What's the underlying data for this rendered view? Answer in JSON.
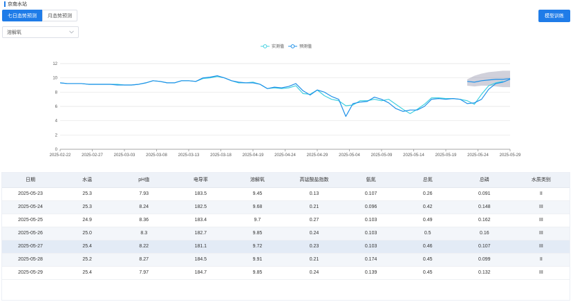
{
  "station": {
    "name": "京南水站"
  },
  "tabs": [
    {
      "label": "七日态势预测",
      "active": true
    },
    {
      "label": "月态势预测",
      "active": false
    }
  ],
  "train_button": {
    "label": "模型训练"
  },
  "select": {
    "value": "溶解氧"
  },
  "colors": {
    "primary": "#1f7ce8",
    "measured": "#40d0e0",
    "forecast": "#1e90e8",
    "band": "#9a9ab0"
  },
  "chart_data": {
    "type": "line",
    "legend": [
      {
        "name": "实测值",
        "color": "#40d0e0"
      },
      {
        "name": "预测值",
        "color": "#1e90e8"
      }
    ],
    "legend_position": "top-center",
    "ylim": [
      0,
      12
    ],
    "yticks": [
      0,
      2,
      4,
      6,
      8,
      10,
      12
    ],
    "grid": true,
    "xticks": [
      "2025-02-22",
      "2025-02-27",
      "2025-03-03",
      "2025-03-08",
      "2025-03-13",
      "2025-03-18",
      "2025-04-19",
      "2025-04-24",
      "2025-04-29",
      "2025-05-04",
      "2025-05-09",
      "2025-05-14",
      "2025-05-19",
      "2025-05-24",
      "2025-05-29"
    ],
    "x_count": 64,
    "series": [
      {
        "name": "实测值",
        "values": [
          9.3,
          9.2,
          9.2,
          9.2,
          9.1,
          9.1,
          9.1,
          9.1,
          9.1,
          9.0,
          9.0,
          9.1,
          9.3,
          9.6,
          9.5,
          9.3,
          9.3,
          9.6,
          9.6,
          9.5,
          9.9,
          10.0,
          10.2,
          10.0,
          9.6,
          9.3,
          9.3,
          9.4,
          9.1,
          8.5,
          8.6,
          8.5,
          8.6,
          8.9,
          7.8,
          7.7,
          8.3,
          7.5,
          7.0,
          6.8,
          6.1,
          6.2,
          6.8,
          6.8,
          7.0,
          6.8,
          7.0,
          6.3,
          5.6,
          5.0,
          5.6,
          6.3,
          7.2,
          7.2,
          7.1,
          7.1,
          7.0,
          6.8,
          6.3,
          7.7,
          8.9,
          9.3,
          9.5,
          null
        ]
      },
      {
        "name": "预测值",
        "values": [
          9.3,
          9.2,
          9.2,
          9.2,
          9.1,
          9.1,
          9.1,
          9.1,
          9.0,
          9.0,
          9.0,
          9.1,
          9.3,
          9.6,
          9.5,
          9.3,
          9.3,
          9.6,
          9.6,
          9.5,
          10.0,
          10.1,
          10.3,
          10.0,
          9.6,
          9.4,
          9.3,
          9.3,
          9.1,
          8.5,
          8.7,
          8.6,
          8.8,
          9.2,
          8.2,
          7.6,
          8.3,
          8.0,
          7.4,
          7.0,
          4.6,
          6.4,
          6.6,
          6.7,
          7.3,
          7.0,
          6.5,
          5.7,
          5.3,
          5.5,
          5.5,
          6.0,
          7.0,
          7.1,
          7.0,
          7.1,
          7.0,
          6.4,
          6.5,
          7.0,
          8.4,
          9.2,
          9.4,
          9.8
        ]
      }
    ],
    "forecast_band": {
      "start_index": 57,
      "upper": [
        9.8,
        10.3,
        10.6,
        10.8,
        10.9,
        11.0,
        11.0
      ],
      "lower": [
        8.9,
        8.8,
        8.9,
        8.9,
        8.8,
        8.7,
        8.7
      ],
      "mid": [
        9.5,
        9.4,
        9.6,
        9.7,
        9.8,
        9.8,
        9.9
      ]
    }
  },
  "table": {
    "columns": [
      "日期",
      "水温",
      "pH值",
      "电导率",
      "溶解氧",
      "高锰酸盐指数",
      "氨氮",
      "总氮",
      "总磷",
      "水质类别"
    ],
    "rows": [
      [
        "2025-05-23",
        "25.3",
        "7.93",
        "183.5",
        "9.45",
        "0.13",
        "0.107",
        "0.26",
        "0.091",
        "II"
      ],
      [
        "2025-05-24",
        "25.3",
        "8.24",
        "182.5",
        "9.68",
        "0.21",
        "0.096",
        "0.42",
        "0.148",
        "III"
      ],
      [
        "2025-05-25",
        "24.9",
        "8.36",
        "183.4",
        "9.7",
        "0.27",
        "0.103",
        "0.49",
        "0.162",
        "III"
      ],
      [
        "2025-05-26",
        "25.0",
        "8.3",
        "182.7",
        "9.85",
        "0.24",
        "0.103",
        "0.5",
        "0.16",
        "III"
      ],
      [
        "2025-05-27",
        "25.4",
        "8.22",
        "181.1",
        "9.72",
        "0.23",
        "0.103",
        "0.46",
        "0.107",
        "III"
      ],
      [
        "2025-05-28",
        "25.2",
        "8.27",
        "184.5",
        "9.91",
        "0.21",
        "0.174",
        "0.45",
        "0.099",
        "II"
      ],
      [
        "2025-05-29",
        "25.4",
        "7.97",
        "184.7",
        "9.85",
        "0.24",
        "0.139",
        "0.45",
        "0.132",
        "III"
      ]
    ],
    "highlight_row": 4
  }
}
